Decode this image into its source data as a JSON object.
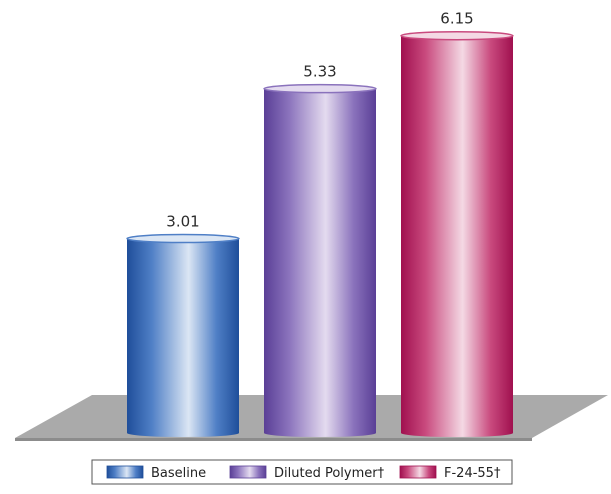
{
  "chart_data": {
    "type": "bar",
    "categories": [
      "Baseline",
      "Diluted Polymer†",
      "F-24-55†"
    ],
    "values": [
      3.01,
      5.33,
      6.15
    ],
    "value_labels": [
      "3.01",
      "5.33",
      "6.15"
    ],
    "legend": [
      "Baseline",
      "Diluted Polymer†",
      "F-24-55†"
    ],
    "legend_position": "bottom",
    "style": "3d-cylinder",
    "colors": [
      {
        "dark": "#1f4e9a",
        "mid": "#4f7fc6",
        "light": "#dbe6f4"
      },
      {
        "dark": "#5a3f96",
        "mid": "#8a72bc",
        "light": "#e4dbef"
      },
      {
        "dark": "#a0104f",
        "mid": "#c94a7e",
        "light": "#f4d9e4"
      }
    ],
    "floor_color": "#a9a9a9",
    "grid": false
  }
}
